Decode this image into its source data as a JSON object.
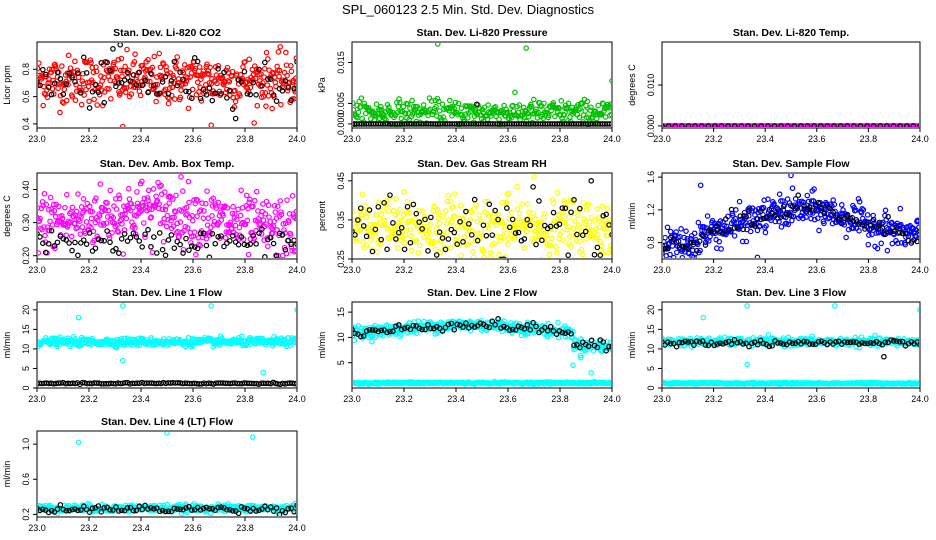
{
  "main_title": "SPL_060123  2.5 Min. Std. Dev. Diagnostics",
  "chart_data": [
    {
      "type": "scatter",
      "title": "Stan. Dev. Li-820 CO2",
      "ylabel": "Licor ppm",
      "xlim": [
        23.0,
        24.0
      ],
      "ylim": [
        0.37,
        1.0
      ],
      "xticks": [
        23.0,
        23.2,
        23.4,
        23.6,
        23.8,
        24.0
      ],
      "xtick_labels": [
        "23.0",
        "23.2",
        "23.4",
        "23.6",
        "23.8",
        "24.0"
      ],
      "yticks": [
        0.4,
        0.6,
        0.8
      ],
      "ytick_labels": [
        "0.4",
        "0.6",
        "0.8"
      ],
      "series": [
        {
          "color": "#ff0000",
          "center": 0.72,
          "spread": 0.09,
          "n": 420,
          "profile": "flat"
        },
        {
          "color": "#000000",
          "center": 0.7,
          "spread": 0.09,
          "n": 90,
          "profile": "flat"
        }
      ],
      "outliers": [
        {
          "x": 23.32,
          "y": 0.98,
          "color": "#000000"
        },
        {
          "x": 23.33,
          "y": 0.38,
          "color": "#ff0000"
        },
        {
          "x": 23.67,
          "y": 0.39,
          "color": "#ff0000"
        }
      ]
    },
    {
      "type": "scatter",
      "title": "Stan. Dev. Li-820 Pressure",
      "ylabel": "kPa",
      "xlim": [
        23.0,
        24.0
      ],
      "ylim": [
        -0.001,
        0.02
      ],
      "xticks": [
        23.0,
        23.2,
        23.4,
        23.6,
        23.8,
        24.0
      ],
      "xtick_labels": [
        "23.0",
        "23.2",
        "23.4",
        "23.6",
        "23.8",
        "24.0"
      ],
      "yticks": [
        0.0,
        0.005,
        0.015
      ],
      "ytick_labels": [
        "0.000",
        "0.005",
        "0.015"
      ],
      "series": [
        {
          "color": "#00c000",
          "center": 0.0028,
          "spread": 0.0015,
          "n": 360,
          "profile": "flat"
        },
        {
          "color": "#000000",
          "center": 0.0,
          "spread": 0.0001,
          "n": 110,
          "profile": "flat"
        }
      ],
      "outliers": [
        {
          "x": 23.33,
          "y": 0.0195,
          "color": "#00c000"
        },
        {
          "x": 23.67,
          "y": 0.0185,
          "color": "#00c000"
        },
        {
          "x": 24.0,
          "y": 0.0105,
          "color": "#00c000"
        },
        {
          "x": 23.48,
          "y": 0.0048,
          "color": "#000000"
        }
      ]
    },
    {
      "type": "scatter",
      "title": "Stan. Dev. Li-820 Temp.",
      "ylabel": "degrees C",
      "xlim": [
        23.0,
        24.0
      ],
      "ylim": [
        -0.0005,
        0.0205
      ],
      "xticks": [
        23.0,
        23.2,
        23.4,
        23.6,
        23.8,
        24.0
      ],
      "xtick_labels": [
        "23.0",
        "23.2",
        "23.4",
        "23.6",
        "23.8",
        "24.0"
      ],
      "yticks": [
        0.0,
        0.01
      ],
      "ytick_labels": [
        "0.000",
        "0.010"
      ],
      "series": [
        {
          "color": "#ff00ff",
          "center": 0.0,
          "spread": 0.0003,
          "n": 160,
          "profile": "temp"
        },
        {
          "color": "#000000",
          "center": 0.0,
          "spread": 0.0003,
          "n": 40,
          "profile": "temp"
        }
      ]
    },
    {
      "type": "scatter",
      "title": "Stan. Dev. Amb. Box Temp.",
      "ylabel": "degrees C",
      "xlim": [
        23.0,
        24.0
      ],
      "ylim": [
        0.19,
        0.45
      ],
      "xticks": [
        23.0,
        23.2,
        23.4,
        23.6,
        23.8,
        24.0
      ],
      "xtick_labels": [
        "23.0",
        "23.2",
        "23.4",
        "23.6",
        "23.8",
        "24.0"
      ],
      "yticks": [
        0.2,
        0.3,
        0.4
      ],
      "ytick_labels": [
        "0.20",
        "0.30",
        "0.40"
      ],
      "series": [
        {
          "color": "#ff00ff",
          "center": 0.3,
          "spread": 0.045,
          "n": 420,
          "profile": "hump"
        },
        {
          "color": "#000000",
          "center": 0.24,
          "spread": 0.02,
          "n": 90,
          "profile": "flat"
        }
      ]
    },
    {
      "type": "scatter",
      "title": "Stan. Dev. Gas Stream RH",
      "ylabel": "percent",
      "xlim": [
        23.0,
        24.0
      ],
      "ylim": [
        0.25,
        0.47
      ],
      "xticks": [
        23.0,
        23.2,
        23.4,
        23.6,
        23.8,
        24.0
      ],
      "xtick_labels": [
        "23.0",
        "23.2",
        "23.4",
        "23.6",
        "23.8",
        "24.0"
      ],
      "yticks": [
        0.25,
        0.35,
        0.45
      ],
      "ytick_labels": [
        "0.25",
        "0.35",
        "0.45"
      ],
      "series": [
        {
          "color": "#ffff00",
          "center": 0.33,
          "spread": 0.04,
          "n": 420,
          "profile": "flat"
        },
        {
          "color": "#000000",
          "center": 0.33,
          "spread": 0.04,
          "n": 90,
          "profile": "flat"
        }
      ],
      "outliers": [
        {
          "x": 23.7,
          "y": 0.46,
          "color": "#ffff00"
        },
        {
          "x": 23.92,
          "y": 0.45,
          "color": "#000000"
        }
      ]
    },
    {
      "type": "scatter",
      "title": "Stan. Dev. Sample Flow",
      "ylabel": "ml/min",
      "xlim": [
        23.0,
        24.0
      ],
      "ylim": [
        0.6,
        1.65
      ],
      "xticks": [
        23.0,
        23.2,
        23.4,
        23.6,
        23.8,
        24.0
      ],
      "xtick_labels": [
        "23.0",
        "23.2",
        "23.4",
        "23.6",
        "23.8",
        "24.0"
      ],
      "yticks": [
        0.8,
        1.2,
        1.6
      ],
      "ytick_labels": [
        "0.8",
        "1.2",
        "1.6"
      ],
      "series": [
        {
          "color": "#0000ff",
          "center": 1.0,
          "spread": 0.1,
          "n": 420,
          "profile": "flowhump"
        },
        {
          "color": "#000000",
          "center": 1.0,
          "spread": 0.07,
          "n": 90,
          "profile": "flowhump"
        }
      ],
      "outliers": [
        {
          "x": 23.5,
          "y": 1.62,
          "color": "#0000ff"
        },
        {
          "x": 23.15,
          "y": 1.5,
          "color": "#0000ff"
        },
        {
          "x": 23.37,
          "y": 0.62,
          "color": "#0000ff"
        }
      ]
    },
    {
      "type": "scatter",
      "title": "Stan. Dev. Line 1 Flow",
      "ylabel": "ml/min",
      "xlim": [
        23.0,
        24.0
      ],
      "ylim": [
        0,
        22
      ],
      "xticks": [
        23.0,
        23.2,
        23.4,
        23.6,
        23.8,
        24.0
      ],
      "xtick_labels": [
        "23.0",
        "23.2",
        "23.4",
        "23.6",
        "23.8",
        "24.0"
      ],
      "yticks": [
        0,
        5,
        10,
        15,
        20
      ],
      "ytick_labels": [
        "0",
        "5",
        "10",
        "15",
        "20"
      ],
      "series": [
        {
          "color": "#00ffff",
          "center": 11.8,
          "spread": 0.5,
          "n": 420,
          "profile": "flat"
        },
        {
          "color": "#000000",
          "center": 1.2,
          "spread": 0.1,
          "n": 110,
          "profile": "flat"
        }
      ],
      "outliers": [
        {
          "x": 23.16,
          "y": 18,
          "color": "#00ffff"
        },
        {
          "x": 23.33,
          "y": 21,
          "color": "#00ffff"
        },
        {
          "x": 23.67,
          "y": 21,
          "color": "#00ffff"
        },
        {
          "x": 24.0,
          "y": 20,
          "color": "#00ffff"
        },
        {
          "x": 23.33,
          "y": 7,
          "color": "#00ffff"
        },
        {
          "x": 23.87,
          "y": 4,
          "color": "#00ffff"
        }
      ]
    },
    {
      "type": "scatter",
      "title": "Stan. Dev. Line 2 Flow",
      "ylabel": "ml/min",
      "xlim": [
        23.0,
        24.0
      ],
      "ylim": [
        0,
        17
      ],
      "xticks": [
        23.0,
        23.2,
        23.4,
        23.6,
        23.8,
        24.0
      ],
      "xtick_labels": [
        "23.0",
        "23.2",
        "23.4",
        "23.6",
        "23.8",
        "24.0"
      ],
      "yticks": [
        5,
        10,
        15
      ],
      "ytick_labels": [
        "5",
        "10",
        "15"
      ],
      "series": [
        {
          "color": "#00ffff",
          "center": 12.2,
          "spread": 0.6,
          "n": 420,
          "profile": "line2"
        },
        {
          "color": "#000000",
          "center": 12.0,
          "spread": 0.5,
          "n": 90,
          "profile": "line2"
        },
        {
          "color": "#00ffff",
          "center": 1.0,
          "spread": 0.1,
          "n": 300,
          "profile": "flat"
        }
      ],
      "outliers": [
        {
          "x": 23.85,
          "y": 4.5,
          "color": "#00ffff"
        },
        {
          "x": 23.88,
          "y": 6,
          "color": "#00ffff"
        },
        {
          "x": 23.92,
          "y": 3,
          "color": "#00ffff"
        }
      ]
    },
    {
      "type": "scatter",
      "title": "Stan. Dev. Line 3 Flow",
      "ylabel": "ml/min",
      "xlim": [
        23.0,
        24.0
      ],
      "ylim": [
        0,
        22
      ],
      "xticks": [
        23.0,
        23.2,
        23.4,
        23.6,
        23.8,
        24.0
      ],
      "xtick_labels": [
        "23.0",
        "23.2",
        "23.4",
        "23.6",
        "23.8",
        "24.0"
      ],
      "yticks": [
        0,
        5,
        10,
        15,
        20
      ],
      "ytick_labels": [
        "0",
        "5",
        "10",
        "15",
        "20"
      ],
      "series": [
        {
          "color": "#00ffff",
          "center": 11.8,
          "spread": 0.5,
          "n": 420,
          "profile": "flat"
        },
        {
          "color": "#000000",
          "center": 11.5,
          "spread": 0.4,
          "n": 90,
          "profile": "flat"
        },
        {
          "color": "#00ffff",
          "center": 1.2,
          "spread": 0.1,
          "n": 300,
          "profile": "flat"
        }
      ],
      "outliers": [
        {
          "x": 23.16,
          "y": 18,
          "color": "#00ffff"
        },
        {
          "x": 23.33,
          "y": 21,
          "color": "#00ffff"
        },
        {
          "x": 23.67,
          "y": 21,
          "color": "#00ffff"
        },
        {
          "x": 24.0,
          "y": 20,
          "color": "#00ffff"
        },
        {
          "x": 23.33,
          "y": 6,
          "color": "#00ffff"
        },
        {
          "x": 23.86,
          "y": 8,
          "color": "#000000"
        }
      ]
    },
    {
      "type": "scatter",
      "title": "Stan. Dev. Line 4 (LT) Flow",
      "ylabel": "ml/min",
      "xlim": [
        23.0,
        24.0
      ],
      "ylim": [
        0.17,
        1.15
      ],
      "xticks": [
        23.0,
        23.2,
        23.4,
        23.6,
        23.8,
        24.0
      ],
      "xtick_labels": [
        "23.0",
        "23.2",
        "23.4",
        "23.6",
        "23.8",
        "24.0"
      ],
      "yticks": [
        0.2,
        0.6,
        1.0
      ],
      "ytick_labels": [
        "0.2",
        "0.6",
        "1.0"
      ],
      "series": [
        {
          "color": "#00ffff",
          "center": 0.27,
          "spread": 0.02,
          "n": 420,
          "profile": "flat"
        },
        {
          "color": "#000000",
          "center": 0.26,
          "spread": 0.02,
          "n": 90,
          "profile": "flat"
        }
      ],
      "outliers": [
        {
          "x": 23.16,
          "y": 1.02,
          "color": "#00ffff"
        },
        {
          "x": 23.5,
          "y": 1.13,
          "color": "#00ffff"
        },
        {
          "x": 23.83,
          "y": 1.08,
          "color": "#00ffff"
        }
      ]
    }
  ]
}
